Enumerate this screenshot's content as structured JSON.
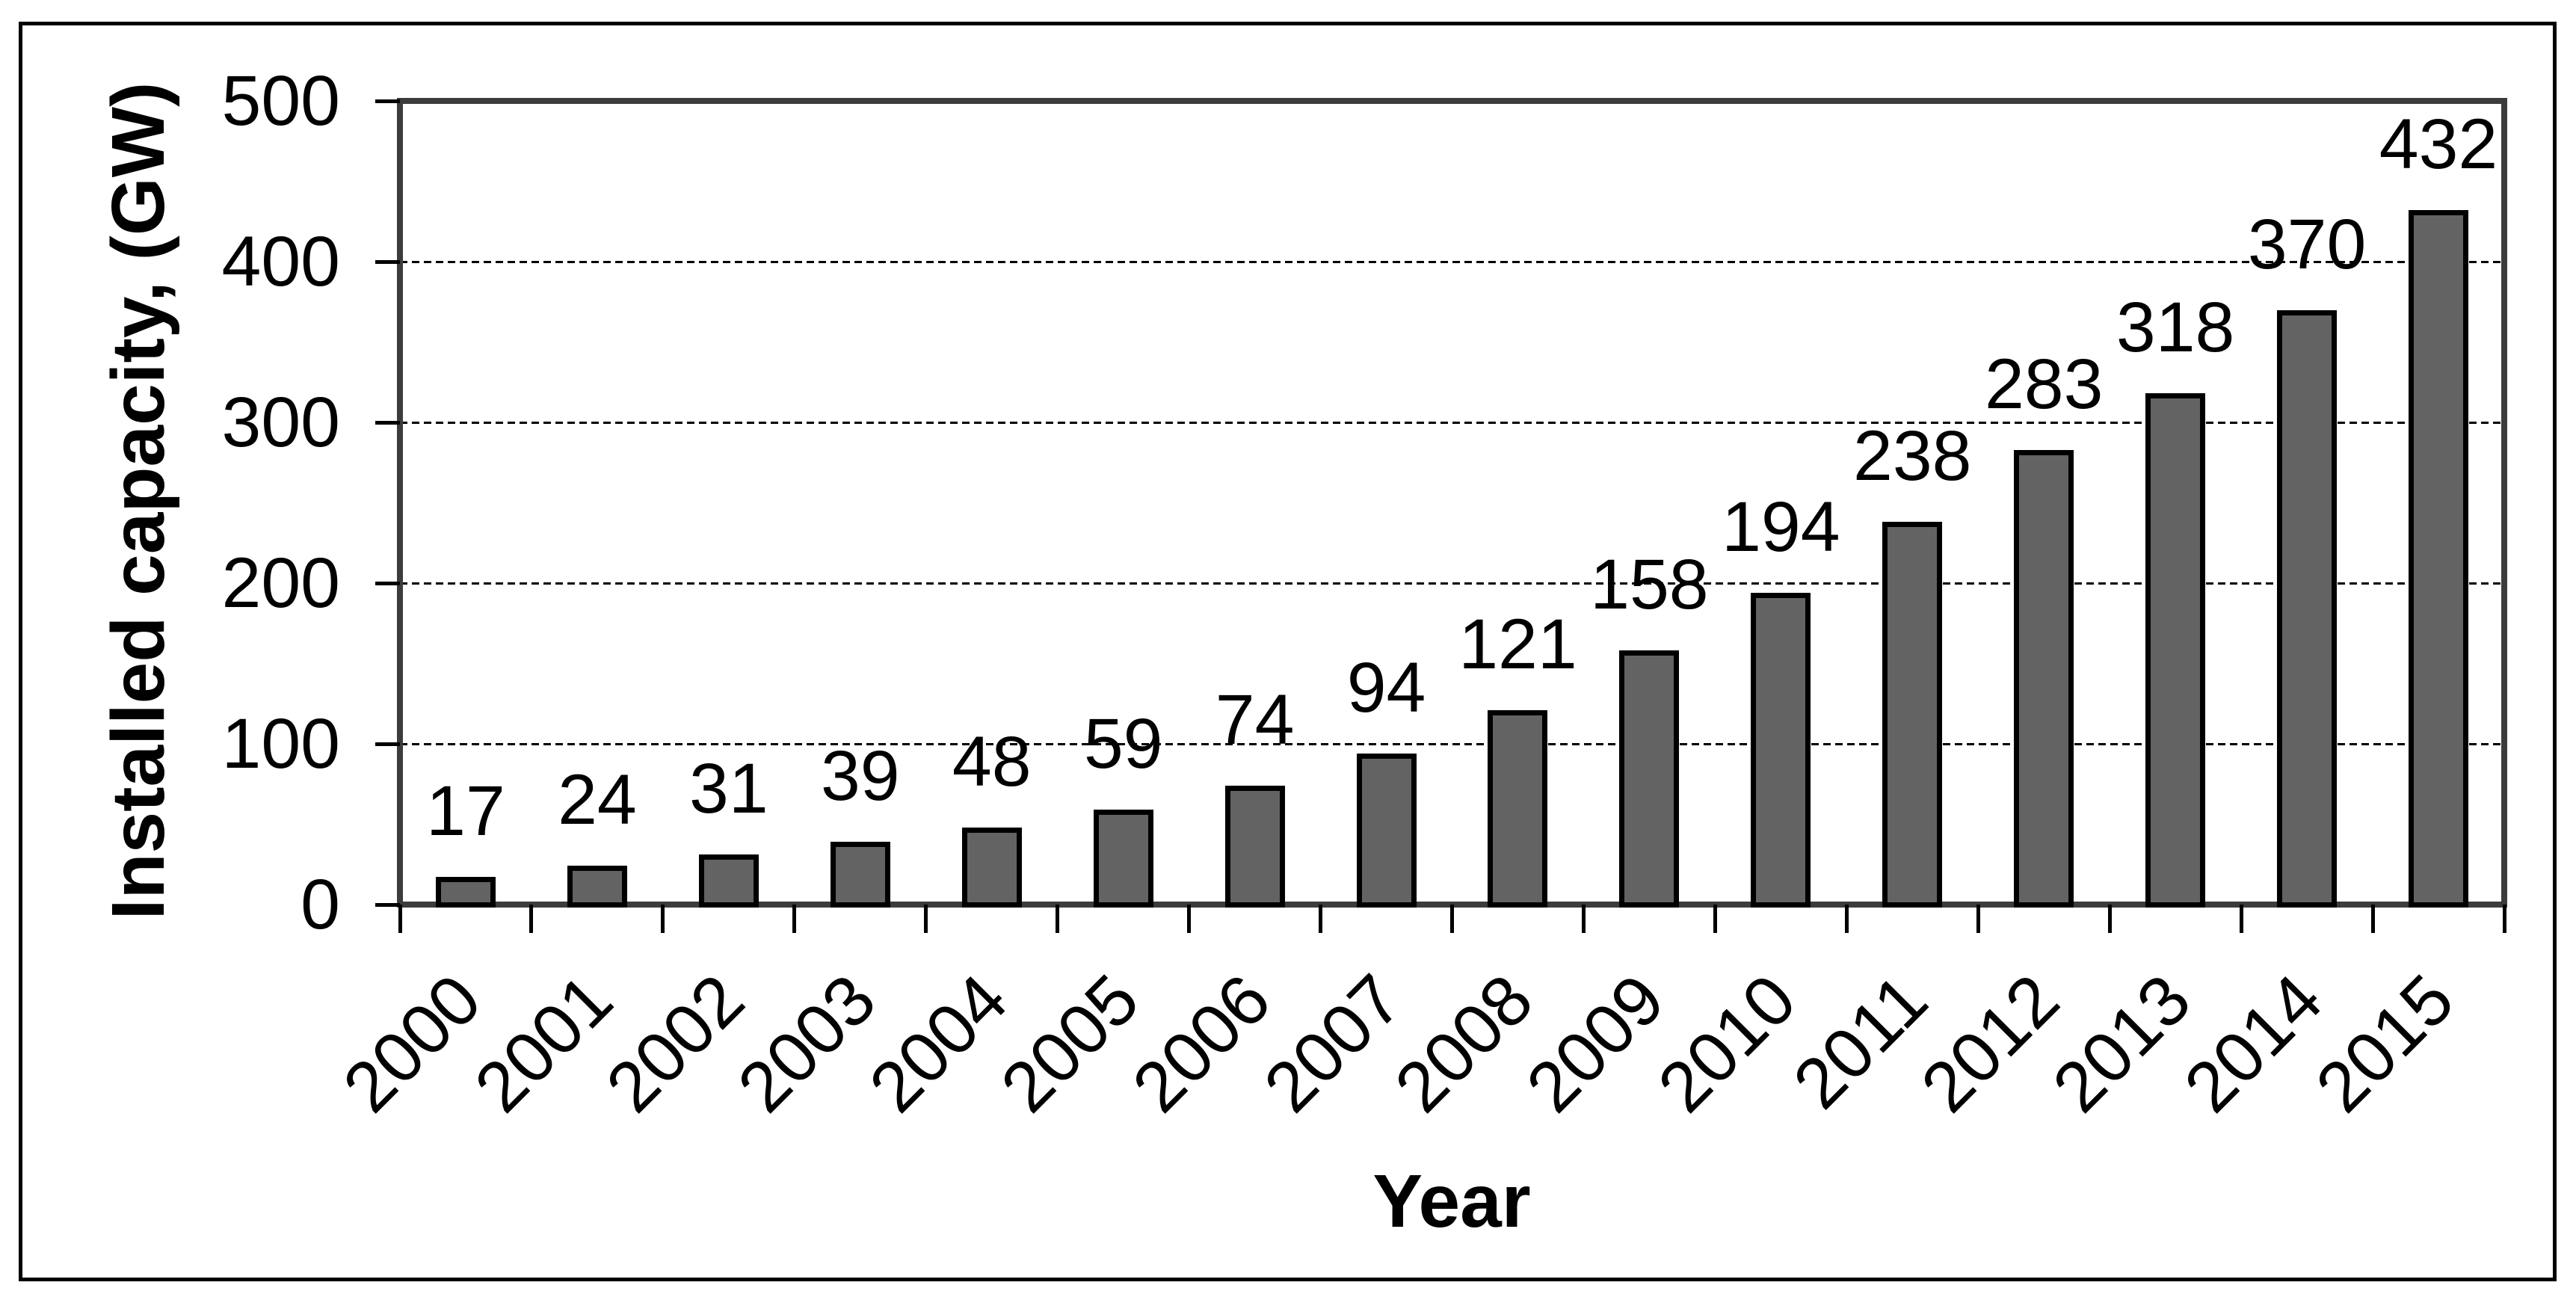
{
  "chart_data": {
    "type": "bar",
    "title": "",
    "categories": [
      "2000",
      "2001",
      "2002",
      "2003",
      "2004",
      "2005",
      "2006",
      "2007",
      "2008",
      "2009",
      "2010",
      "2011",
      "2012",
      "2013",
      "2014",
      "2015"
    ],
    "values": [
      17,
      24,
      31,
      39,
      48,
      59,
      74,
      94,
      121,
      158,
      194,
      238,
      283,
      318,
      370,
      432
    ],
    "xlabel": "Year",
    "ylabel": "Installed capacity, (GW)",
    "ylim": [
      0,
      500
    ],
    "yticks": [
      0,
      100,
      200,
      300,
      400,
      500
    ],
    "grid": "horizontal-dashed",
    "legend": "none",
    "data_labels_shown": true,
    "x_tick_label_rotation_deg": 45,
    "colors": {
      "bar_fill": "#636363",
      "bar_border": "#000000",
      "plot_border": "#3c3c3c",
      "gridline": "#000000",
      "tick": "#000000",
      "text": "#000000",
      "outer_border": "#000000",
      "background": "#ffffff"
    }
  }
}
